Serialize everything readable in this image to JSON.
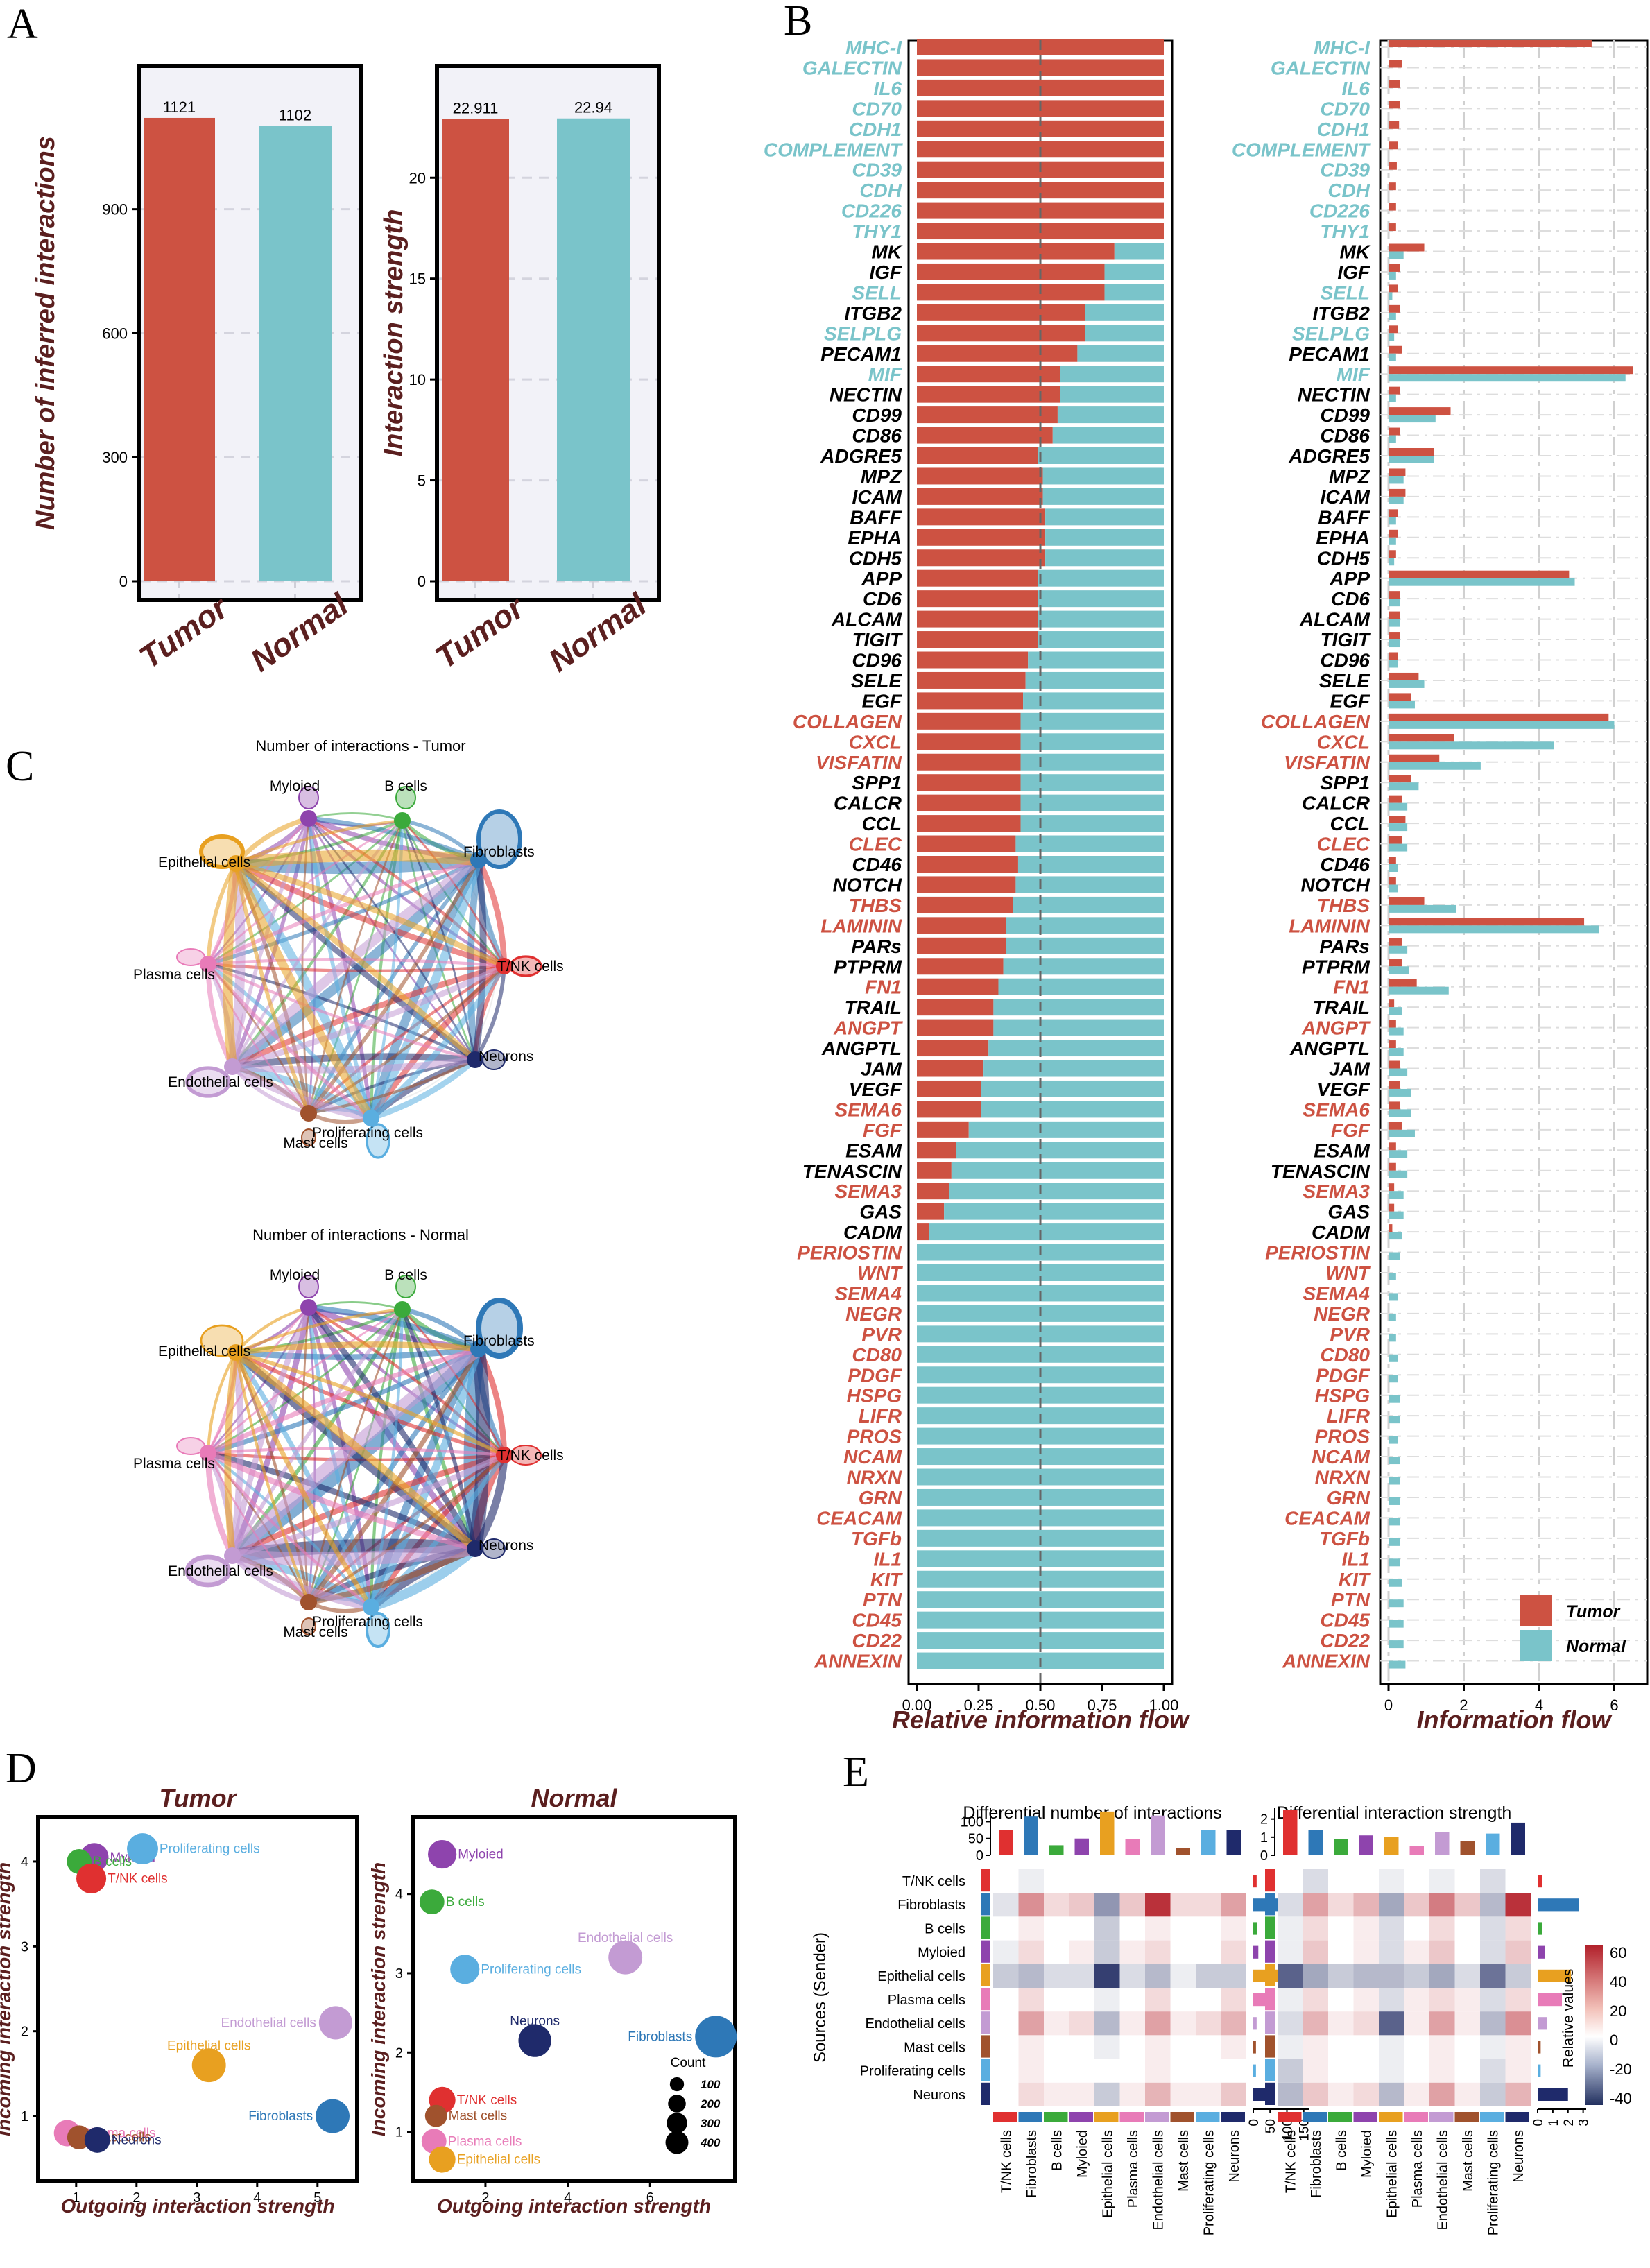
{
  "panel_labels": [
    "A",
    "B",
    "C",
    "D",
    "E"
  ],
  "colors": {
    "tumor": "#CD5242",
    "normal": "#7AC4CA",
    "dark": "#5B1F1F"
  },
  "chart_data": [
    {
      "id": "A1",
      "type": "bar",
      "categories": [
        "Tumor",
        "Normal"
      ],
      "values": [
        1121,
        1102
      ],
      "value_labels": [
        "1121",
        "1102"
      ],
      "ylabel": "Number of inferred interactions",
      "yticks": [
        0,
        300,
        600,
        900
      ],
      "ylim": [
        0,
        1230
      ]
    },
    {
      "id": "A2",
      "type": "bar",
      "categories": [
        "Tumor",
        "Normal"
      ],
      "values": [
        22.911,
        22.94
      ],
      "value_labels": [
        "22.911",
        "22.94"
      ],
      "ylabel": "Interaction strength",
      "yticks": [
        0,
        5,
        10,
        15,
        20
      ],
      "ylim": [
        0,
        25.2
      ]
    },
    {
      "id": "B1",
      "type": "bar",
      "orientation": "horizontal",
      "stacked": true,
      "xlabel": "Relative information flow",
      "xticks": [
        "0.00",
        "0.25",
        "0.50",
        "0.75",
        "1.00"
      ],
      "series": [
        "Tumor",
        "Normal"
      ],
      "categories": [
        "MHC-I",
        "GALECTIN",
        "IL6",
        "CD70",
        "CDH1",
        "COMPLEMENT",
        "CD39",
        "CDH",
        "CD226",
        "THY1",
        "MK",
        "IGF",
        "SELL",
        "ITGB2",
        "SELPLG",
        "PECAM1",
        "MIF",
        "NECTIN",
        "CD99",
        "CD86",
        "ADGRE5",
        "MPZ",
        "ICAM",
        "BAFF",
        "EPHA",
        "CDH5",
        "APP",
        "CD6",
        "ALCAM",
        "TIGIT",
        "CD96",
        "SELE",
        "EGF",
        "COLLAGEN",
        "CXCL",
        "VISFATIN",
        "SPP1",
        "CALCR",
        "CCL",
        "CLEC",
        "CD46",
        "NOTCH",
        "THBS",
        "LAMININ",
        "PARs",
        "PTPRM",
        "FN1",
        "TRAIL",
        "ANGPT",
        "ANGPTL",
        "JAM",
        "VEGF",
        "SEMA6",
        "FGF",
        "ESAM",
        "TENASCIN",
        "SEMA3",
        "GAS",
        "CADM",
        "PERIOSTIN",
        "WNT",
        "SEMA4",
        "NEGR",
        "PVR",
        "CD80",
        "PDGF",
        "HSPG",
        "LIFR",
        "PROS",
        "NCAM",
        "NRXN",
        "GRN",
        "CEACAM",
        "TGFb",
        "IL1",
        "KIT",
        "PTN",
        "CD45",
        "CD22",
        "ANNEXIN"
      ],
      "label_colors": [
        "n",
        "n",
        "n",
        "n",
        "n",
        "n",
        "n",
        "n",
        "n",
        "n",
        "k",
        "k",
        "n",
        "k",
        "n",
        "k",
        "n",
        "k",
        "k",
        "k",
        "k",
        "k",
        "k",
        "k",
        "k",
        "k",
        "k",
        "k",
        "k",
        "k",
        "k",
        "k",
        "k",
        "t",
        "t",
        "t",
        "k",
        "k",
        "k",
        "t",
        "k",
        "k",
        "t",
        "t",
        "k",
        "k",
        "t",
        "k",
        "t",
        "k",
        "k",
        "k",
        "t",
        "t",
        "k",
        "k",
        "t",
        "k",
        "k",
        "t",
        "t",
        "t",
        "t",
        "t",
        "t",
        "t",
        "t",
        "t",
        "t",
        "t",
        "t",
        "t",
        "t",
        "t",
        "t",
        "t",
        "t",
        "t",
        "t",
        "t"
      ],
      "tumor_fraction": [
        1,
        1,
        1,
        1,
        1,
        1,
        1,
        1,
        1,
        1,
        0.8,
        0.76,
        0.76,
        0.68,
        0.68,
        0.65,
        0.58,
        0.58,
        0.57,
        0.55,
        0.49,
        0.51,
        0.51,
        0.52,
        0.52,
        0.52,
        0.49,
        0.49,
        0.49,
        0.49,
        0.45,
        0.44,
        0.43,
        0.42,
        0.42,
        0.42,
        0.42,
        0.42,
        0.42,
        0.4,
        0.41,
        0.4,
        0.39,
        0.36,
        0.36,
        0.35,
        0.33,
        0.31,
        0.31,
        0.29,
        0.27,
        0.26,
        0.26,
        0.21,
        0.16,
        0.14,
        0.13,
        0.11,
        0.05,
        0,
        0,
        0,
        0,
        0,
        0,
        0,
        0,
        0,
        0,
        0,
        0,
        0,
        0,
        0,
        0,
        0,
        0,
        0,
        0,
        0
      ]
    },
    {
      "id": "B2",
      "type": "bar",
      "orientation": "horizontal",
      "grouped": true,
      "xlabel": "Information flow",
      "xticks": [
        "0",
        "2",
        "4",
        "6"
      ],
      "xlim": [
        0,
        6.6
      ],
      "legend": {
        "title": "",
        "entries": [
          "Tumor",
          "Normal"
        ],
        "position": "bottom-right"
      },
      "tumor": [
        5.4,
        0.35,
        0.3,
        0.3,
        0.28,
        0.25,
        0.22,
        0.2,
        0.2,
        0.2,
        0.95,
        0.3,
        0.25,
        0.3,
        0.25,
        0.35,
        6.5,
        0.3,
        1.65,
        0.3,
        1.2,
        0.45,
        0.45,
        0.25,
        0.25,
        0.2,
        4.8,
        0.3,
        0.3,
        0.3,
        0.25,
        0.8,
        0.6,
        5.85,
        1.75,
        1.35,
        0.6,
        0.35,
        0.45,
        0.35,
        0.2,
        0.2,
        0.95,
        5.2,
        0.35,
        0.35,
        0.75,
        0.15,
        0.2,
        0.2,
        0.3,
        0.3,
        0.3,
        0.35,
        0.2,
        0.2,
        0.15,
        0.15,
        0.1,
        0,
        0,
        0,
        0,
        0,
        0,
        0,
        0,
        0,
        0,
        0,
        0,
        0,
        0,
        0,
        0,
        0,
        0,
        0,
        0,
        0
      ],
      "normal": [
        0,
        0,
        0,
        0,
        0,
        0,
        0,
        0,
        0,
        0,
        0.4,
        0.2,
        0.1,
        0.2,
        0.15,
        0.2,
        6.3,
        0.2,
        1.25,
        0.2,
        1.2,
        0.4,
        0.4,
        0.2,
        0.2,
        0.15,
        4.95,
        0.3,
        0.3,
        0.3,
        0.25,
        0.95,
        0.7,
        6.0,
        4.4,
        2.45,
        0.8,
        0.5,
        0.5,
        0.5,
        0.25,
        0.25,
        1.8,
        5.6,
        0.5,
        0.55,
        1.6,
        0.35,
        0.4,
        0.4,
        0.5,
        0.6,
        0.6,
        0.7,
        0.5,
        0.5,
        0.4,
        0.4,
        0.35,
        0.3,
        0.2,
        0.25,
        0.2,
        0.2,
        0.25,
        0.25,
        0.3,
        0.3,
        0.25,
        0.3,
        0.3,
        0.3,
        0.3,
        0.3,
        0.3,
        0.35,
        0.4,
        0.4,
        0.4,
        0.45
      ]
    },
    {
      "id": "C",
      "type": "network",
      "cells": [
        "Myloied",
        "B cells",
        "Fibroblasts",
        "T/NK cells",
        "Neurons",
        "Proliferating cells",
        "Mast cells",
        "Endothelial cells",
        "Plasma cells",
        "Epithelial cells"
      ],
      "node_colors": [
        "#8E44AD",
        "#3BAA3B",
        "#2E78B7",
        "#E03030",
        "#1F2A6B",
        "#5AAEE0",
        "#A0522D",
        "#C39BD3",
        "#E87BB8",
        "#E8A020"
      ],
      "titles": [
        "Number of interactions - Tumor",
        "Number of interactions - Normal"
      ]
    },
    {
      "id": "D1",
      "type": "scatter",
      "title": "Tumor",
      "xlabel": "Outgoing interaction strength",
      "ylabel": "Incoming interaction strength",
      "xlim": [
        0.6,
        5.6
      ],
      "ylim": [
        0.6,
        4.4
      ],
      "xticks": [
        1,
        2,
        3,
        4,
        5
      ],
      "yticks": [
        1,
        2,
        3,
        4
      ],
      "points": [
        {
          "label": "Myloied",
          "x": 1.3,
          "y": 4.05,
          "count": 140
        },
        {
          "label": "B cells",
          "x": 1.05,
          "y": 4.0,
          "count": 90
        },
        {
          "label": "Proliferating cells",
          "x": 2.1,
          "y": 4.15,
          "count": 180
        },
        {
          "label": "T/NK cells",
          "x": 1.25,
          "y": 3.8,
          "count": 160
        },
        {
          "label": "Endothelial cells",
          "x": 5.3,
          "y": 2.1,
          "count": 220
        },
        {
          "label": "Epithelial cells",
          "x": 3.2,
          "y": 1.6,
          "count": 230
        },
        {
          "label": "Fibroblasts",
          "x": 5.25,
          "y": 1.0,
          "count": 230
        },
        {
          "label": "Plasma cells",
          "x": 0.85,
          "y": 0.8,
          "count": 110
        },
        {
          "label": "Mast cells",
          "x": 1.05,
          "y": 0.75,
          "count": 80
        },
        {
          "label": "Neurons",
          "x": 1.35,
          "y": 0.72,
          "count": 100
        }
      ]
    },
    {
      "id": "D2",
      "type": "scatter",
      "title": "Normal",
      "xlabel": "Outgoing interaction strength",
      "ylabel": "Incoming interaction strength",
      "xlim": [
        0.4,
        7.9
      ],
      "ylim": [
        0.55,
        4.75
      ],
      "xticks": [
        2,
        4,
        6
      ],
      "yticks": [
        1,
        2,
        3,
        4
      ],
      "points": [
        {
          "label": "Myloied",
          "x": 0.95,
          "y": 4.5,
          "count": 140
        },
        {
          "label": "B cells",
          "x": 0.7,
          "y": 3.9,
          "count": 90
        },
        {
          "label": "Proliferating cells",
          "x": 1.5,
          "y": 3.05,
          "count": 150
        },
        {
          "label": "Endothelial cells",
          "x": 5.4,
          "y": 3.2,
          "count": 230
        },
        {
          "label": "Neurons",
          "x": 3.2,
          "y": 2.15,
          "count": 210
        },
        {
          "label": "Fibroblasts",
          "x": 7.6,
          "y": 2.2,
          "count": 400
        },
        {
          "label": "T/NK cells",
          "x": 0.95,
          "y": 1.4,
          "count": 110
        },
        {
          "label": "Mast cells",
          "x": 0.8,
          "y": 1.2,
          "count": 60
        },
        {
          "label": "Plasma cells",
          "x": 0.75,
          "y": 0.88,
          "count": 90
        },
        {
          "label": "Epithelial cells",
          "x": 0.95,
          "y": 0.65,
          "count": 110
        }
      ],
      "legend": {
        "title": "Count",
        "entries": [
          {
            "label": "100",
            "count": 100
          },
          {
            "label": "200",
            "count": 200
          },
          {
            "label": "300",
            "count": 300
          },
          {
            "label": "400",
            "count": 400
          }
        ]
      }
    },
    {
      "id": "E",
      "type": "heatmap",
      "titles": [
        "Differential number of interactions",
        "Differential interaction strength"
      ],
      "ylabel": "Sources (Sender)",
      "legend_title": "Relative values",
      "legend_ticks": [
        "60",
        "40",
        "20",
        "0",
        "-20",
        "-40"
      ],
      "cells": [
        "T/NK cells",
        "Fibroblasts",
        "B cells",
        "Myloied",
        "Epithelial cells",
        "Plasma cells",
        "Endothelial cells",
        "Mast cells",
        "Proliferating cells",
        "Neurons"
      ],
      "top_ticks_1": [
        "0",
        "50",
        "100"
      ],
      "top_ticks_2": [
        "0",
        "1",
        "2"
      ],
      "right_ticks_1": [
        "0",
        "50",
        "100",
        "150"
      ],
      "right_ticks_2": [
        "0",
        "1",
        "2",
        "3"
      ],
      "top_values_1": [
        75,
        115,
        30,
        50,
        130,
        48,
        118,
        22,
        75,
        75
      ],
      "right_values_1": [
        10,
        150,
        12,
        15,
        120,
        40,
        10,
        8,
        8,
        40
      ],
      "top_values_2": [
        2.5,
        1.4,
        0.9,
        1.1,
        1.0,
        0.5,
        1.3,
        0.8,
        1.2,
        1.8
      ],
      "right_values_2": [
        0.3,
        2.7,
        0.3,
        0.5,
        2.2,
        1.6,
        0.6,
        0.2,
        0.2,
        2.0
      ],
      "matrix_1": [
        [
          0,
          -5,
          0,
          0,
          0,
          0,
          0,
          0,
          0,
          0
        ],
        [
          -8,
          30,
          10,
          15,
          -30,
          15,
          55,
          10,
          10,
          25
        ],
        [
          0,
          5,
          0,
          0,
          -15,
          0,
          5,
          0,
          0,
          5
        ],
        [
          -5,
          10,
          0,
          5,
          -15,
          5,
          10,
          0,
          0,
          10
        ],
        [
          -15,
          -20,
          -10,
          -10,
          -55,
          -10,
          -20,
          -5,
          -15,
          -15
        ],
        [
          0,
          10,
          0,
          0,
          -5,
          0,
          10,
          0,
          0,
          10
        ],
        [
          0,
          25,
          5,
          10,
          -20,
          5,
          25,
          5,
          10,
          20
        ],
        [
          0,
          5,
          0,
          0,
          -5,
          0,
          5,
          0,
          0,
          5
        ],
        [
          0,
          5,
          0,
          0,
          0,
          0,
          5,
          0,
          0,
          0
        ],
        [
          0,
          10,
          5,
          5,
          -15,
          5,
          20,
          5,
          5,
          15
        ]
      ],
      "matrix_2": [
        [
          0,
          -10,
          0,
          0,
          -5,
          0,
          -5,
          0,
          -10,
          0
        ],
        [
          -10,
          25,
          10,
          20,
          -25,
          15,
          35,
          15,
          -20,
          55
        ],
        [
          -5,
          10,
          0,
          5,
          -10,
          0,
          10,
          0,
          -10,
          10
        ],
        [
          -5,
          15,
          0,
          5,
          -10,
          5,
          15,
          0,
          -10,
          15
        ],
        [
          -45,
          -25,
          -15,
          -20,
          -20,
          -15,
          -25,
          -10,
          -40,
          -15
        ],
        [
          -5,
          10,
          0,
          5,
          -10,
          5,
          10,
          5,
          -10,
          10
        ],
        [
          -10,
          20,
          5,
          10,
          -45,
          5,
          25,
          5,
          -20,
          30
        ],
        [
          -5,
          5,
          0,
          0,
          -5,
          0,
          5,
          0,
          -5,
          5
        ],
        [
          -15,
          5,
          0,
          0,
          -5,
          0,
          5,
          0,
          -10,
          5
        ],
        [
          -20,
          15,
          5,
          10,
          -20,
          5,
          25,
          5,
          -15,
          20
        ]
      ]
    }
  ]
}
